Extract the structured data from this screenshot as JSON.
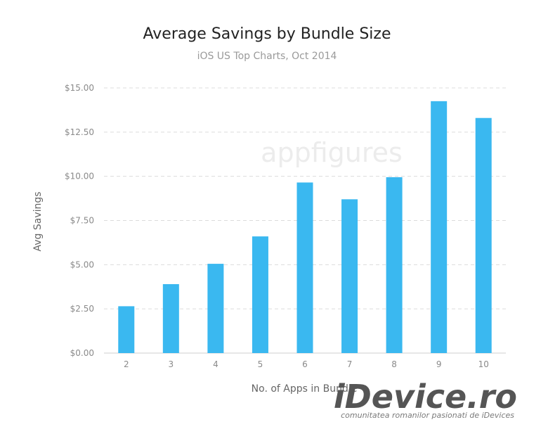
{
  "chart_data": {
    "type": "bar",
    "title": "Average Savings by Bundle Size",
    "subtitle": "iOS US Top Charts, Oct 2014",
    "xlabel": "No. of Apps in Bundle",
    "ylabel": "Avg Savings",
    "categories": [
      "2",
      "3",
      "4",
      "5",
      "6",
      "7",
      "8",
      "9",
      "10"
    ],
    "values": [
      2.65,
      3.9,
      5.05,
      6.6,
      9.65,
      8.7,
      9.95,
      14.25,
      13.3
    ],
    "ylim": [
      0,
      15
    ],
    "yticks": [
      0,
      2.5,
      5,
      7.5,
      10,
      12.5,
      15
    ],
    "ytick_labels": [
      "$0.00",
      "$2.50",
      "$5.00",
      "$7.50",
      "$10.00",
      "$12.50",
      "$15.00"
    ],
    "grid": true,
    "bar_color": "#3ab8f0"
  },
  "watermarks": {
    "appfigures": "appfigures",
    "brand": "iDevice.ro",
    "tagline": "comunitatea romanilor pasionati de iDevices"
  }
}
